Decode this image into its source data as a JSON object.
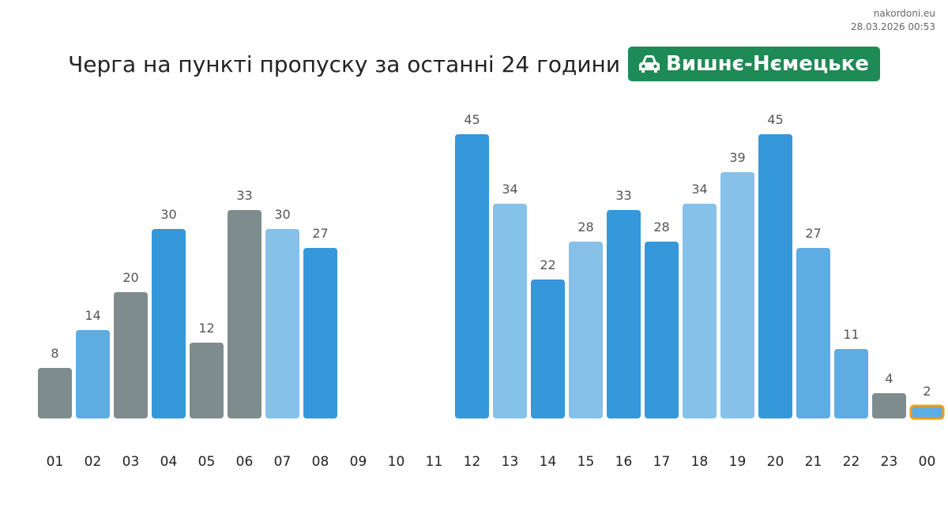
{
  "header": {
    "site": "nakordoni.eu",
    "timestamp": "28.03.2026 00:53",
    "title": "Черга на пункті пропуску за останні 24 години",
    "checkpoint": "Вишнє-Нємецьке",
    "checkpoint_icon": "car-icon",
    "badge_color": "#1e8a55"
  },
  "chart_data": {
    "type": "bar",
    "categories": [
      "01",
      "02",
      "03",
      "04",
      "05",
      "06",
      "07",
      "08",
      "09",
      "10",
      "11",
      "12",
      "13",
      "14",
      "15",
      "16",
      "17",
      "18",
      "19",
      "20",
      "21",
      "22",
      "23",
      "00"
    ],
    "values": [
      8,
      14,
      20,
      30,
      12,
      33,
      30,
      27,
      null,
      null,
      null,
      45,
      34,
      22,
      28,
      33,
      28,
      34,
      39,
      45,
      27,
      11,
      4,
      2
    ],
    "bar_colors": [
      "#7f8c8d",
      "#5dade2",
      "#7f8c8d",
      "#3498db",
      "#7f8c8d",
      "#7f8c8d",
      "#85c1e9",
      "#3498db",
      null,
      null,
      null,
      "#3498db",
      "#85c1e9",
      "#3498db",
      "#85c1e9",
      "#3498db",
      "#3498db",
      "#85c1e9",
      "#85c1e9",
      "#3498db",
      "#5dade2",
      "#5dade2",
      "#7f8c8d",
      "#5dade2"
    ],
    "highlight_index": 23,
    "highlight_color": "#f39c12",
    "ylim": [
      0,
      45
    ],
    "grid": false,
    "legend": "none"
  }
}
